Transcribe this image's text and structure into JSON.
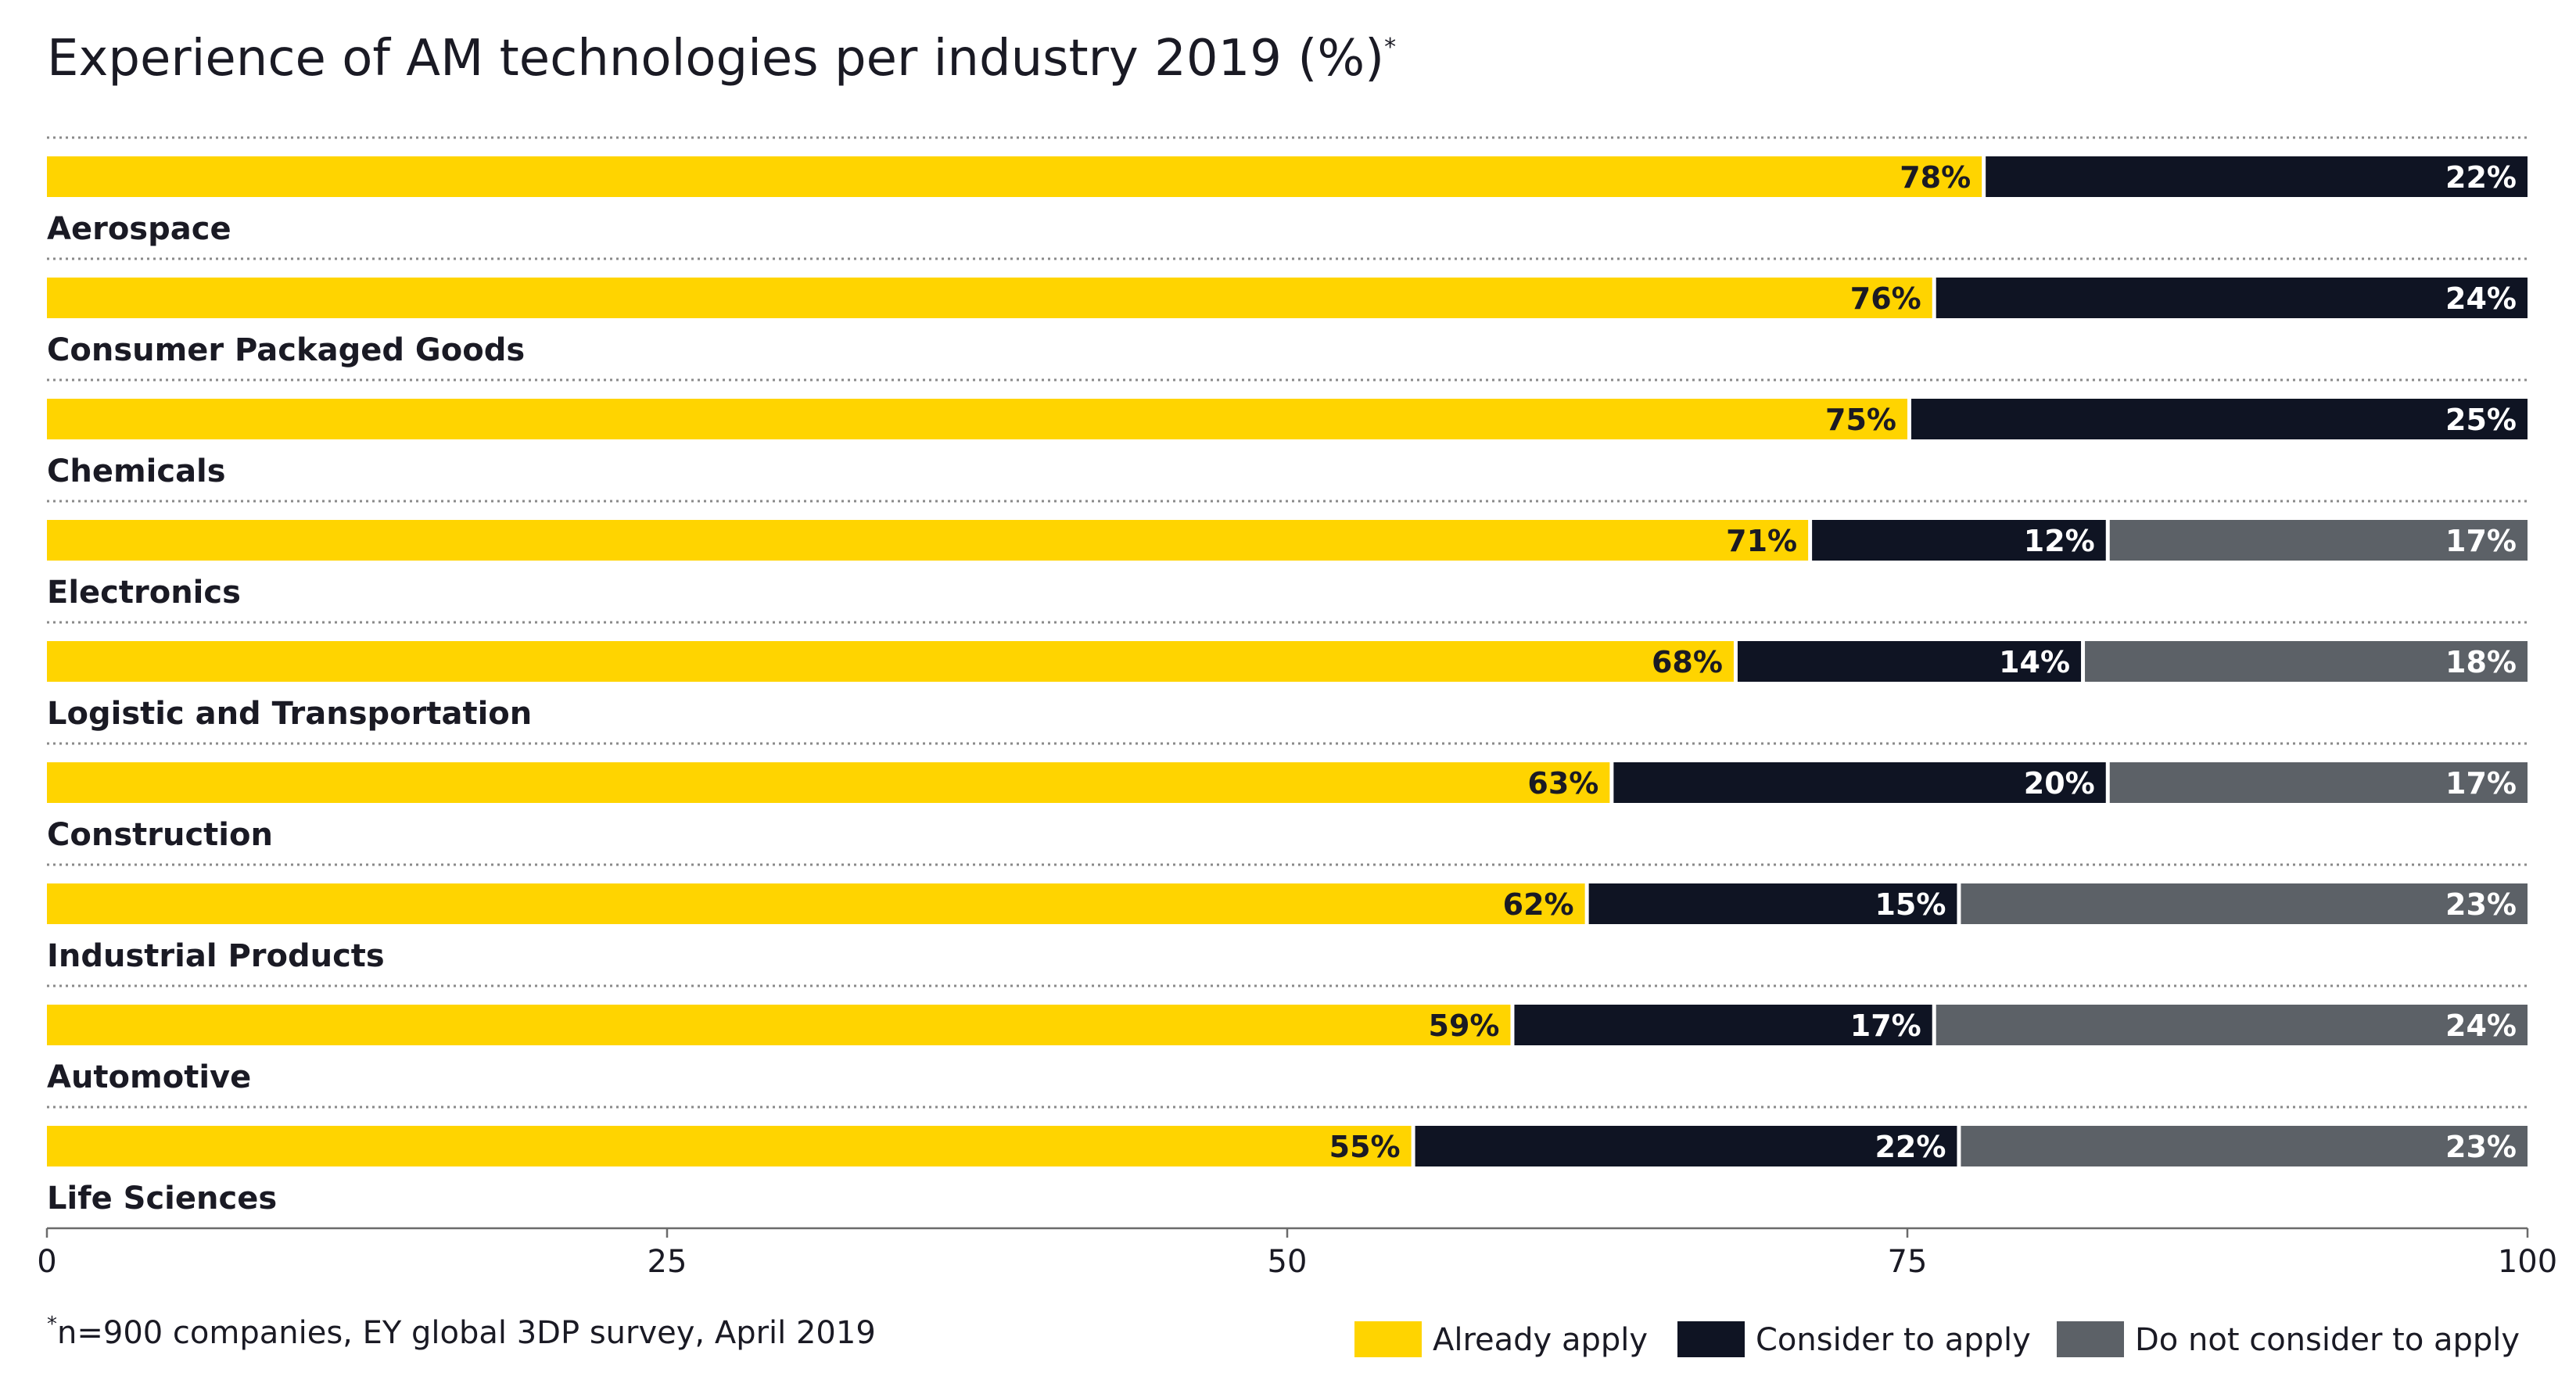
{
  "chart_data": {
    "type": "bar",
    "orientation": "horizontal",
    "stacked": true,
    "title": "Experience of AM technologies per industry 2019 (%)",
    "title_marker": "*",
    "xlabel": "",
    "ylabel": "",
    "xlim": [
      0,
      100
    ],
    "xticks": [
      0,
      25,
      50,
      75,
      100
    ],
    "xtick_labels": [
      "0",
      "25",
      "50",
      "75",
      "100"
    ],
    "categories": [
      "Aerospace",
      "Consumer Packaged Goods",
      "Chemicals",
      "Electronics",
      "Logistic and Transportation",
      "Construction",
      "Industrial Products",
      "Automotive",
      "Life Sciences"
    ],
    "series": [
      {
        "name": "Already apply",
        "color": "#ffd400",
        "label_color": "#1a1a24",
        "values": [
          78,
          76,
          75,
          71,
          68,
          63,
          62,
          59,
          55
        ],
        "labels": [
          "78%",
          "76%",
          "75%",
          "71%",
          "68%",
          "63%",
          "62%",
          "59%",
          "55%"
        ]
      },
      {
        "name": "Consider to apply",
        "color": "#0f1423",
        "label_color": "#ffffff",
        "values": [
          22,
          24,
          25,
          12,
          14,
          20,
          15,
          17,
          22
        ],
        "labels": [
          "22%",
          "24%",
          "25%",
          "12%",
          "14%",
          "20%",
          "15%",
          "17%",
          "22%"
        ]
      },
      {
        "name": "Do not consider to apply",
        "color": "#5c6167",
        "label_color": "#ffffff",
        "values": [
          0,
          0,
          0,
          17,
          18,
          17,
          23,
          24,
          23
        ],
        "labels": [
          "",
          "",
          "",
          "17%",
          "18%",
          "17%",
          "23%",
          "24%",
          "23%"
        ]
      }
    ],
    "legend": {
      "position": "bottom-right",
      "entries": [
        "Already apply",
        "Consider to apply",
        "Do not consider to apply"
      ]
    },
    "footnote": {
      "marker": "*",
      "text": "n=900 companies, EY global 3DP survey, April 2019"
    },
    "grid": false
  }
}
